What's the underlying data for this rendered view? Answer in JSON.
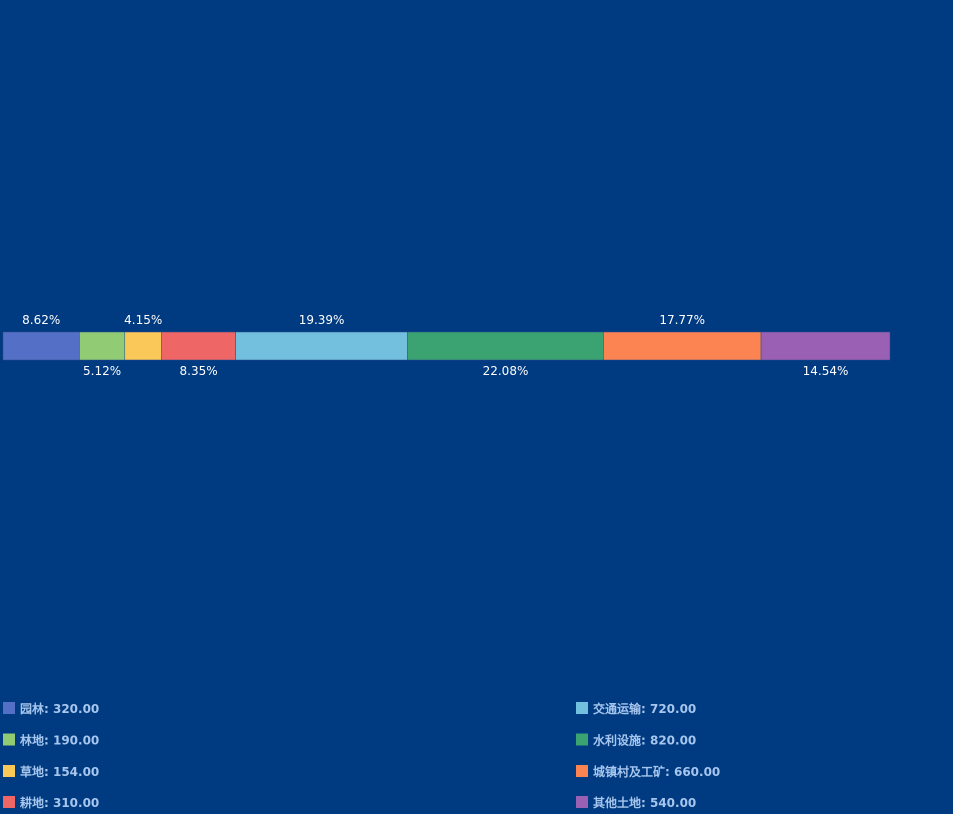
{
  "chart_data": {
    "type": "bar",
    "stacked": true,
    "orientation": "horizontal",
    "categories": [
      "园林",
      "林地",
      "草地",
      "耕地",
      "交通运输",
      "水利设施",
      "城镇村及工矿",
      "其他土地"
    ],
    "values": [
      320,
      190,
      154,
      310,
      720,
      820,
      660,
      540
    ],
    "percent_labels": [
      "8.62%",
      "5.12%",
      "4.15%",
      "8.35%",
      "19.39%",
      "22.08%",
      "17.77%",
      "14.54%"
    ],
    "label_positions": [
      "top",
      "bottom",
      "top",
      "bottom",
      "top",
      "bottom",
      "top",
      "bottom"
    ],
    "colors": [
      "#5470c6",
      "#91cc75",
      "#fac858",
      "#ee6666",
      "#73c0de",
      "#3ba272",
      "#fc8452",
      "#9a60b4"
    ],
    "legend": {
      "placement": "bottom",
      "entries": [
        "园林: 320.00",
        "林地: 190.00",
        "草地: 154.00",
        "耕地: 310.00",
        "交通运输: 720.00",
        "水利设施: 820.00",
        "城镇村及工矿: 660.00",
        "其他土地: 540.00"
      ]
    },
    "grid": false
  }
}
